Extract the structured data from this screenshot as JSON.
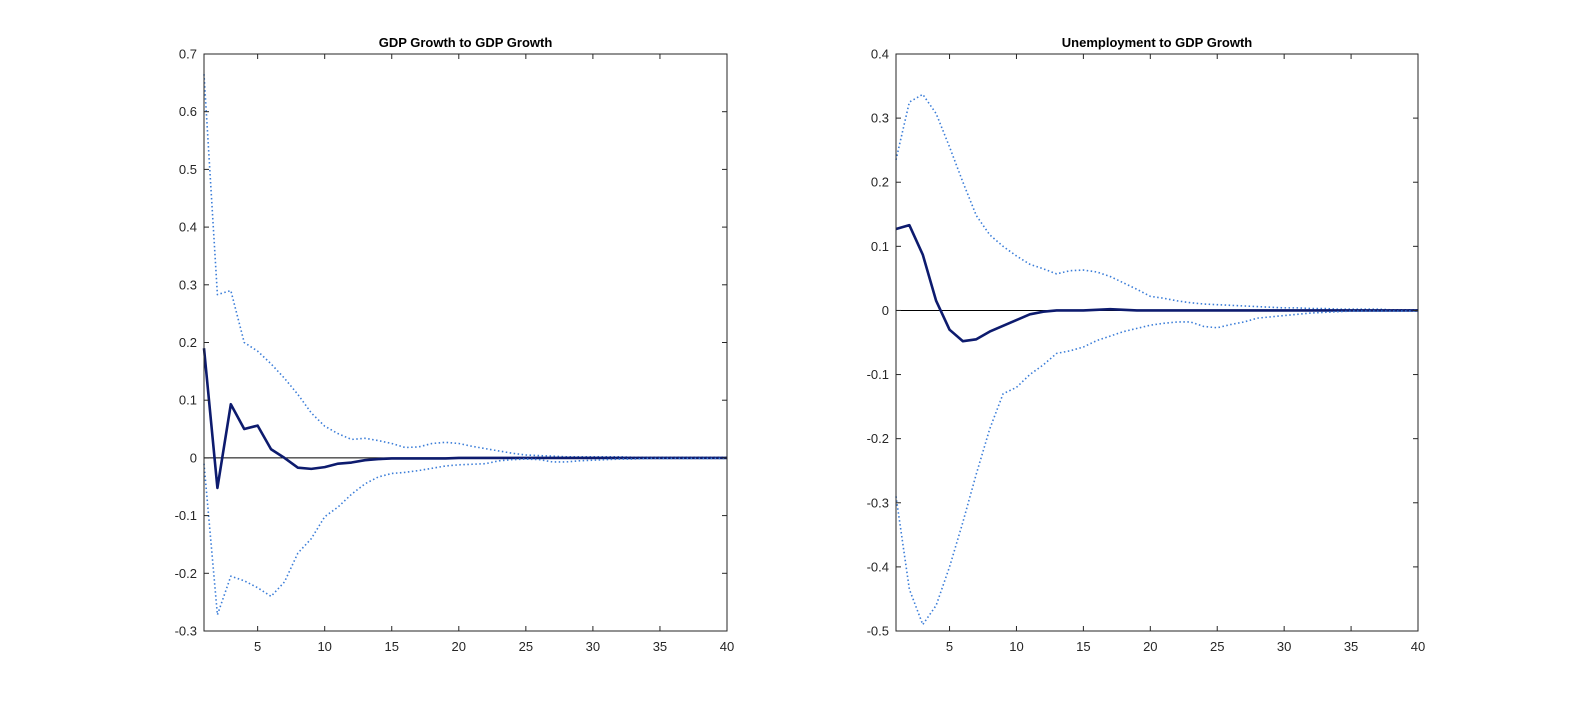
{
  "chart_data": [
    {
      "type": "line",
      "title": "GDP Growth to GDP Growth",
      "xlabel": "",
      "ylabel": "",
      "xlim": [
        1,
        40
      ],
      "ylim": [
        -0.3,
        0.7
      ],
      "xticks": [
        5,
        10,
        15,
        20,
        25,
        30,
        35,
        40
      ],
      "yticks": [
        -0.3,
        -0.2,
        -0.1,
        0,
        0.1,
        0.2,
        0.3,
        0.4,
        0.5,
        0.6,
        0.7
      ],
      "ytick_labels": [
        "-0.3",
        "-0.2",
        "-0.1",
        "0",
        "0.1",
        "0.2",
        "0.3",
        "0.4",
        "0.5",
        "0.6",
        "0.7"
      ],
      "grid": false,
      "legend": "none",
      "zero_line": true,
      "x": [
        1,
        2,
        3,
        4,
        5,
        6,
        7,
        8,
        9,
        10,
        11,
        12,
        13,
        14,
        15,
        16,
        17,
        18,
        19,
        20,
        21,
        22,
        23,
        24,
        25,
        26,
        27,
        28,
        29,
        30,
        31,
        32,
        33,
        34,
        35,
        36,
        37,
        38,
        39,
        40
      ],
      "series": [
        {
          "style": "dotted",
          "color": "#3b7dd8",
          "values": [
            0.665,
            0.283,
            0.29,
            0.2,
            0.185,
            0.163,
            0.138,
            0.11,
            0.078,
            0.055,
            0.042,
            0.032,
            0.034,
            0.03,
            0.025,
            0.018,
            0.019,
            0.025,
            0.027,
            0.025,
            0.02,
            0.016,
            0.012,
            0.008,
            0.005,
            0.004,
            0.003,
            0.002,
            0.002,
            0.002,
            0.002,
            0.002,
            0.001,
            0.001,
            0.001,
            0.001,
            0.001,
            0.001,
            0.001,
            0.001
          ]
        },
        {
          "style": "solid",
          "color": "#0d1b6e",
          "values": [
            0.19,
            -0.052,
            0.093,
            0.05,
            0.056,
            0.015,
            0.0,
            -0.017,
            -0.019,
            -0.016,
            -0.01,
            -0.008,
            -0.004,
            -0.002,
            -0.001,
            -0.001,
            -0.001,
            -0.001,
            -0.001,
            0.0,
            0.0,
            0.0,
            0.0,
            0.0,
            0.0,
            0.0,
            0.0,
            0.0,
            0.0,
            0.0,
            0.0,
            0.0,
            0.0,
            0.0,
            0.0,
            0.0,
            0.0,
            0.0,
            0.0,
            0.0
          ]
        },
        {
          "style": "dotted",
          "color": "#3b7dd8",
          "values": [
            -0.01,
            -0.272,
            -0.205,
            -0.213,
            -0.225,
            -0.24,
            -0.215,
            -0.165,
            -0.14,
            -0.102,
            -0.085,
            -0.063,
            -0.045,
            -0.033,
            -0.027,
            -0.025,
            -0.022,
            -0.018,
            -0.014,
            -0.012,
            -0.011,
            -0.01,
            -0.005,
            -0.003,
            -0.002,
            -0.003,
            -0.007,
            -0.007,
            -0.005,
            -0.004,
            -0.003,
            -0.002,
            -0.002,
            -0.001,
            -0.001,
            -0.001,
            -0.001,
            -0.001,
            -0.001,
            -0.001
          ]
        }
      ]
    },
    {
      "type": "line",
      "title": "Unemployment to GDP Growth",
      "xlabel": "",
      "ylabel": "",
      "xlim": [
        1,
        40
      ],
      "ylim": [
        -0.5,
        0.4
      ],
      "xticks": [
        5,
        10,
        15,
        20,
        25,
        30,
        35,
        40
      ],
      "yticks": [
        -0.5,
        -0.4,
        -0.3,
        -0.2,
        -0.1,
        0,
        0.1,
        0.2,
        0.3,
        0.4
      ],
      "ytick_labels": [
        "-0.5",
        "-0.4",
        "-0.3",
        "-0.2",
        "-0.1",
        "0",
        "0.1",
        "0.2",
        "0.3",
        "0.4"
      ],
      "grid": false,
      "legend": "none",
      "zero_line": true,
      "x": [
        1,
        2,
        3,
        4,
        5,
        6,
        7,
        8,
        9,
        10,
        11,
        12,
        13,
        14,
        15,
        16,
        17,
        18,
        19,
        20,
        21,
        22,
        23,
        24,
        25,
        26,
        27,
        28,
        29,
        30,
        31,
        32,
        33,
        34,
        35,
        36,
        37,
        38,
        39,
        40
      ],
      "series": [
        {
          "style": "dotted",
          "color": "#3b7dd8",
          "values": [
            0.235,
            0.325,
            0.337,
            0.307,
            0.255,
            0.2,
            0.148,
            0.118,
            0.1,
            0.085,
            0.072,
            0.065,
            0.057,
            0.062,
            0.063,
            0.06,
            0.053,
            0.043,
            0.033,
            0.022,
            0.019,
            0.015,
            0.012,
            0.01,
            0.009,
            0.008,
            0.007,
            0.006,
            0.005,
            0.004,
            0.004,
            0.003,
            0.003,
            0.002,
            0.002,
            0.002,
            0.002,
            0.001,
            0.001,
            0.001
          ]
        },
        {
          "style": "solid",
          "color": "#0d1b6e",
          "values": [
            0.127,
            0.133,
            0.087,
            0.015,
            -0.03,
            -0.048,
            -0.045,
            -0.033,
            -0.024,
            -0.015,
            -0.006,
            -0.002,
            0.0,
            0.0,
            0.0,
            0.001,
            0.002,
            0.001,
            0.0,
            0.0,
            0.0,
            0.0,
            0.0,
            0.0,
            0.0,
            0.0,
            0.0,
            0.0,
            0.0,
            0.0,
            0.0,
            0.0,
            0.0,
            0.0,
            0.0,
            0.0,
            0.0,
            0.0,
            0.0,
            0.0
          ]
        },
        {
          "style": "dotted",
          "color": "#3b7dd8",
          "values": [
            -0.29,
            -0.435,
            -0.49,
            -0.46,
            -0.4,
            -0.33,
            -0.255,
            -0.185,
            -0.13,
            -0.12,
            -0.1,
            -0.085,
            -0.067,
            -0.063,
            -0.057,
            -0.047,
            -0.04,
            -0.033,
            -0.028,
            -0.023,
            -0.02,
            -0.018,
            -0.018,
            -0.025,
            -0.027,
            -0.022,
            -0.018,
            -0.012,
            -0.01,
            -0.008,
            -0.006,
            -0.004,
            -0.003,
            -0.002,
            -0.001,
            -0.001,
            -0.001,
            -0.001,
            -0.001,
            -0.001
          ]
        }
      ]
    }
  ]
}
